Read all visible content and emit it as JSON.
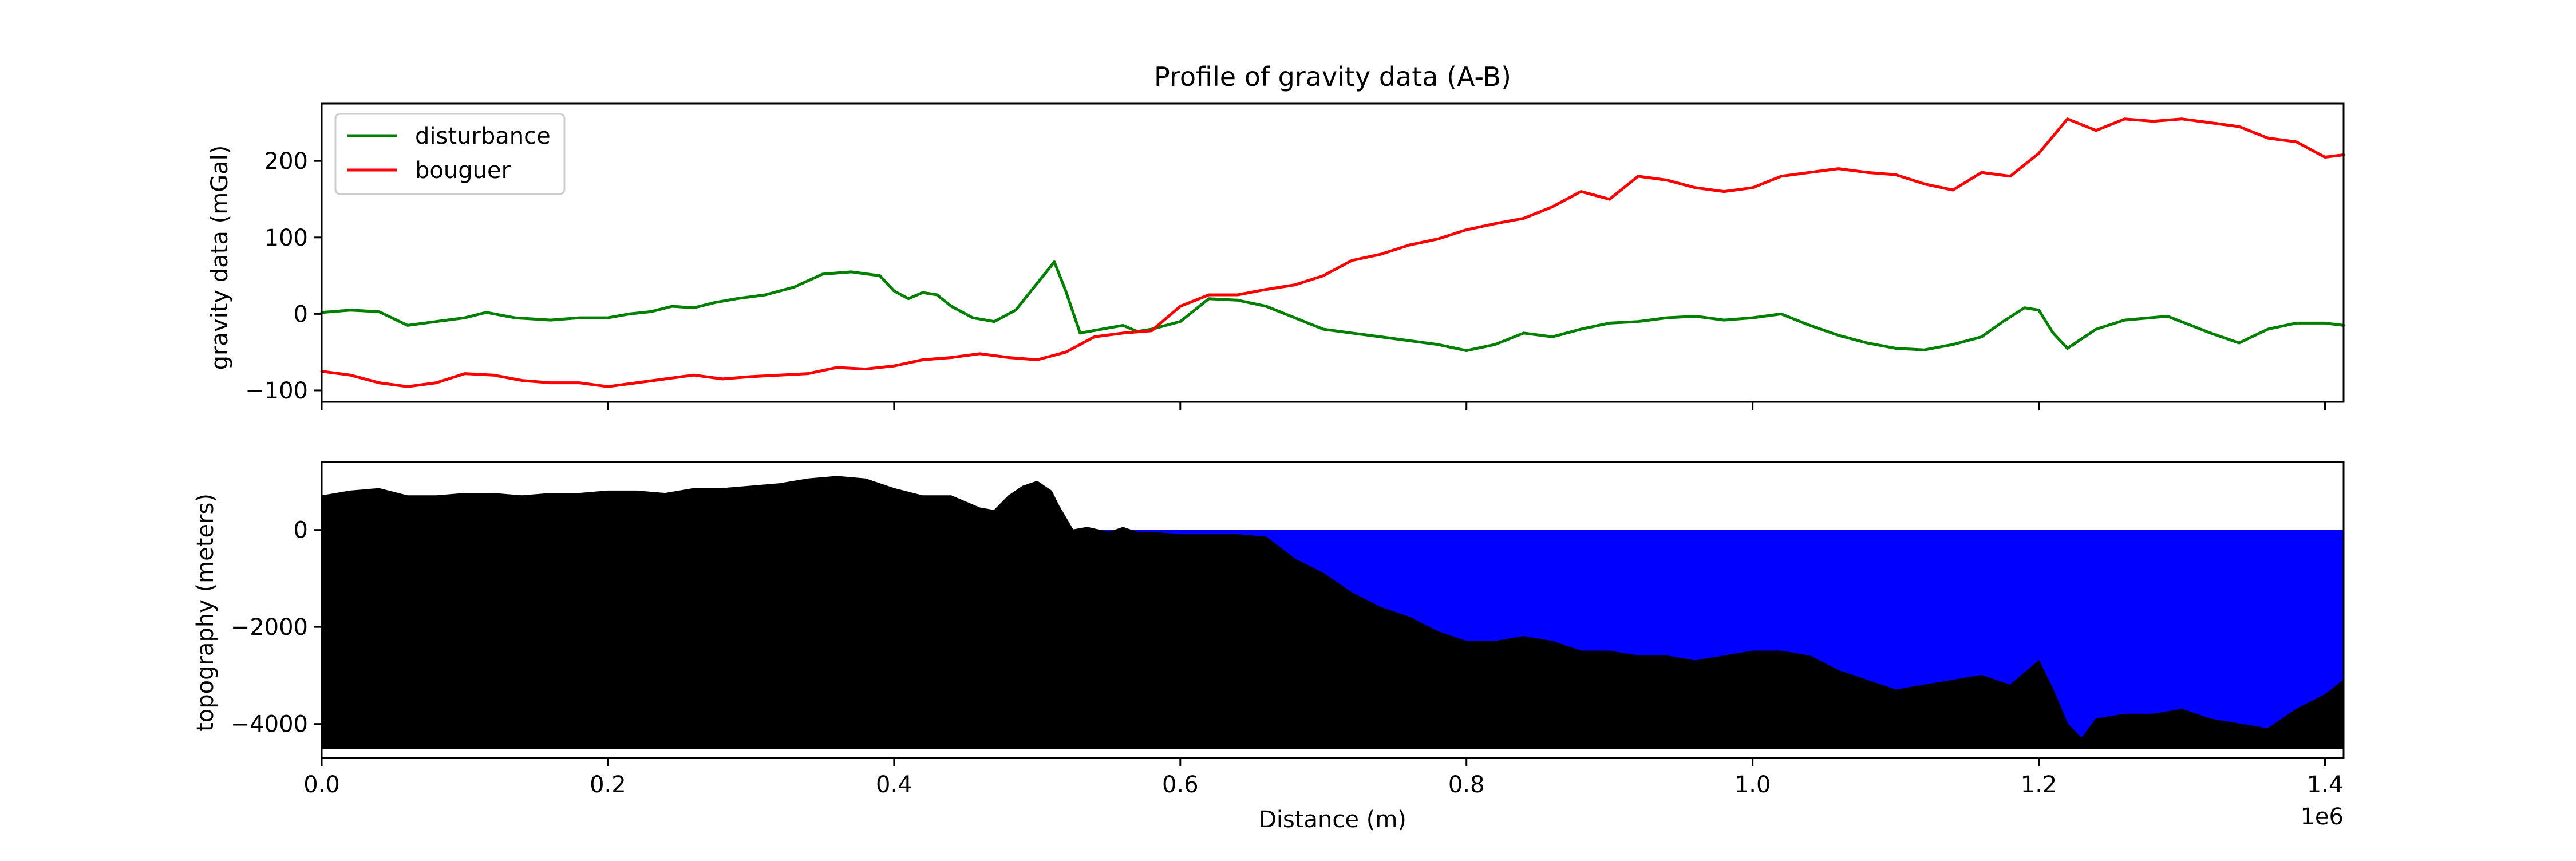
{
  "chart_data": [
    {
      "type": "line",
      "title": "Profile of gravity data (A-B)",
      "ylabel": "gravity data (mGal)",
      "xlabel": "",
      "xlim": [
        0,
        1413000
      ],
      "ylim": [
        -115,
        275
      ],
      "xticks": [
        0,
        200000,
        400000,
        600000,
        800000,
        1000000,
        1200000,
        1400000
      ],
      "yticks": [
        -100,
        0,
        100,
        200
      ],
      "ytick_labels": [
        "−100",
        "0",
        "100",
        "200"
      ],
      "grid": false,
      "legend": "upper-left",
      "series": [
        {
          "name": "disturbance",
          "color": "#008000",
          "x": [
            0,
            20000,
            40000,
            60000,
            80000,
            100000,
            115000,
            135000,
            160000,
            180000,
            200000,
            215000,
            230000,
            245000,
            260000,
            275000,
            290000,
            310000,
            330000,
            350000,
            370000,
            390000,
            400000,
            410000,
            420000,
            430000,
            440000,
            455000,
            470000,
            485000,
            500000,
            512000,
            520000,
            530000,
            545000,
            560000,
            570000,
            580000,
            600000,
            620000,
            640000,
            660000,
            680000,
            700000,
            720000,
            740000,
            760000,
            780000,
            800000,
            820000,
            840000,
            860000,
            880000,
            900000,
            920000,
            940000,
            960000,
            980000,
            1000000,
            1020000,
            1040000,
            1060000,
            1080000,
            1100000,
            1120000,
            1140000,
            1160000,
            1175000,
            1190000,
            1200000,
            1210000,
            1220000,
            1240000,
            1260000,
            1290000,
            1320000,
            1340000,
            1360000,
            1380000,
            1400000,
            1413000
          ],
          "y": [
            2,
            5,
            3,
            -15,
            -10,
            -5,
            2,
            -5,
            -8,
            -5,
            -5,
            0,
            3,
            10,
            8,
            15,
            20,
            25,
            35,
            52,
            55,
            50,
            30,
            20,
            28,
            25,
            10,
            -5,
            -10,
            5,
            40,
            68,
            30,
            -25,
            -20,
            -15,
            -23,
            -20,
            -10,
            20,
            18,
            10,
            -5,
            -20,
            -25,
            -30,
            -35,
            -40,
            -48,
            -40,
            -25,
            -30,
            -20,
            -12,
            -10,
            -5,
            -3,
            -8,
            -5,
            0,
            -15,
            -28,
            -38,
            -45,
            -47,
            -40,
            -30,
            -10,
            8,
            5,
            -25,
            -45,
            -20,
            -8,
            -3,
            -25,
            -38,
            -20,
            -12,
            -12,
            -15
          ]
        },
        {
          "name": "bouguer",
          "color": "#ff0000",
          "x": [
            0,
            20000,
            40000,
            60000,
            80000,
            100000,
            120000,
            140000,
            160000,
            180000,
            200000,
            220000,
            240000,
            260000,
            280000,
            300000,
            320000,
            340000,
            360000,
            380000,
            400000,
            420000,
            440000,
            460000,
            480000,
            500000,
            520000,
            540000,
            560000,
            580000,
            600000,
            620000,
            640000,
            660000,
            680000,
            700000,
            720000,
            740000,
            760000,
            780000,
            800000,
            820000,
            840000,
            860000,
            880000,
            900000,
            920000,
            940000,
            960000,
            980000,
            1000000,
            1020000,
            1040000,
            1060000,
            1080000,
            1100000,
            1120000,
            1140000,
            1160000,
            1180000,
            1200000,
            1220000,
            1240000,
            1260000,
            1280000,
            1300000,
            1320000,
            1340000,
            1360000,
            1380000,
            1400000,
            1413000
          ],
          "y": [
            -75,
            -80,
            -90,
            -95,
            -90,
            -78,
            -80,
            -87,
            -90,
            -90,
            -95,
            -90,
            -85,
            -80,
            -85,
            -82,
            -80,
            -78,
            -70,
            -72,
            -68,
            -60,
            -57,
            -52,
            -57,
            -60,
            -50,
            -30,
            -25,
            -22,
            10,
            25,
            25,
            32,
            38,
            50,
            70,
            78,
            90,
            98,
            110,
            118,
            125,
            140,
            160,
            150,
            180,
            175,
            165,
            160,
            165,
            180,
            185,
            190,
            185,
            182,
            170,
            162,
            185,
            180,
            210,
            255,
            240,
            255,
            252,
            255,
            250,
            245,
            230,
            225,
            205,
            208
          ]
        }
      ]
    },
    {
      "type": "area",
      "title": "",
      "ylabel": "topography (meters)",
      "xlabel": "Distance (m)",
      "xlim": [
        0,
        1413000
      ],
      "ylim": [
        -4700,
        1400
      ],
      "x_offset_label": "1e6",
      "xticks": [
        0,
        200000,
        400000,
        600000,
        800000,
        1000000,
        1200000,
        1400000
      ],
      "xtick_labels": [
        "0.0",
        "0.2",
        "0.4",
        "0.6",
        "0.8",
        "1.0",
        "1.2",
        "1.4"
      ],
      "yticks": [
        -4000,
        -2000,
        0
      ],
      "ytick_labels": [
        "−4000",
        "−2000",
        "0"
      ],
      "baseline": -4500,
      "grid": false,
      "series": [
        {
          "name": "",
          "color": "#000000",
          "x": [
            0,
            20000,
            40000,
            60000,
            80000,
            100000,
            120000,
            140000,
            160000,
            180000,
            200000,
            220000,
            240000,
            260000,
            280000,
            300000,
            320000,
            340000,
            360000,
            380000,
            400000,
            420000,
            440000,
            460000,
            470000,
            480000,
            490000,
            500000,
            510000,
            515000,
            525000,
            535000,
            550000,
            560000,
            570000,
            580000,
            600000,
            620000,
            640000,
            660000,
            680000,
            700000,
            720000,
            740000,
            760000,
            780000,
            800000,
            820000,
            840000,
            860000,
            880000,
            900000,
            920000,
            940000,
            960000,
            980000,
            1000000,
            1020000,
            1040000,
            1060000,
            1080000,
            1100000,
            1120000,
            1140000,
            1160000,
            1180000,
            1200000,
            1210000,
            1220000,
            1230000,
            1240000,
            1260000,
            1280000,
            1300000,
            1320000,
            1340000,
            1360000,
            1380000,
            1400000,
            1413000
          ],
          "y": [
            700,
            800,
            850,
            700,
            700,
            750,
            750,
            700,
            750,
            750,
            800,
            800,
            750,
            850,
            850,
            900,
            950,
            1050,
            1100,
            1050,
            850,
            700,
            700,
            450,
            400,
            700,
            900,
            1000,
            800,
            500,
            0,
            50,
            -50,
            50,
            -50,
            -50,
            -100,
            -100,
            -100,
            -150,
            -600,
            -900,
            -1300,
            -1600,
            -1800,
            -2100,
            -2300,
            -2300,
            -2200,
            -2300,
            -2500,
            -2500,
            -2600,
            -2600,
            -2700,
            -2600,
            -2500,
            -2500,
            -2600,
            -2900,
            -3100,
            -3300,
            -3200,
            -3100,
            -3000,
            -3200,
            -2700,
            -3300,
            -4000,
            -4300,
            -3900,
            -3800,
            -3800,
            -3700,
            -3900,
            -4000,
            -4100,
            -3700,
            -3400,
            -3100
          ]
        },
        {
          "name": "",
          "color": "#0000ff",
          "description_level": 0
        }
      ]
    }
  ]
}
